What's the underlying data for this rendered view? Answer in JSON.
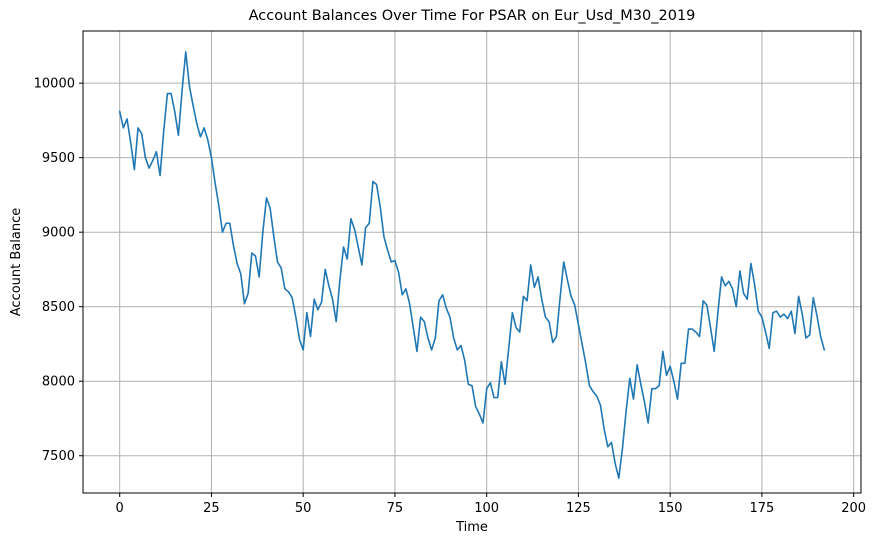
{
  "chart_data": {
    "type": "line",
    "title": "Account Balances Over Time For PSAR on Eur_Usd_M30_2019",
    "xlabel": "Time",
    "ylabel": "Account Balance",
    "xlim": [
      -10,
      202
    ],
    "ylim": [
      7250,
      10350
    ],
    "xticks": [
      0,
      25,
      50,
      75,
      100,
      125,
      150,
      175,
      200
    ],
    "yticks": [
      7500,
      8000,
      8500,
      9000,
      9500,
      10000
    ],
    "grid": true,
    "series": [
      {
        "color": "#1f77b4",
        "x": [
          0,
          1,
          2,
          3,
          4,
          5,
          6,
          7,
          8,
          9,
          10,
          11,
          12,
          13,
          14,
          15,
          16,
          17,
          18,
          19,
          20,
          21,
          22,
          23,
          24,
          25,
          26,
          27,
          28,
          29,
          30,
          31,
          32,
          33,
          34,
          35,
          36,
          37,
          38,
          39,
          40,
          41,
          42,
          43,
          44,
          45,
          46,
          47,
          48,
          49,
          50,
          51,
          52,
          53,
          54,
          55,
          56,
          57,
          58,
          59,
          60,
          61,
          62,
          63,
          64,
          65,
          66,
          67,
          68,
          69,
          70,
          71,
          72,
          73,
          74,
          75,
          76,
          77,
          78,
          79,
          80,
          81,
          82,
          83,
          84,
          85,
          86,
          87,
          88,
          89,
          90,
          91,
          92,
          93,
          94,
          95,
          96,
          97,
          98,
          99,
          100,
          101,
          102,
          103,
          104,
          105,
          106,
          107,
          108,
          109,
          110,
          111,
          112,
          113,
          114,
          115,
          116,
          117,
          118,
          119,
          120,
          121,
          122,
          123,
          124,
          125,
          126,
          127,
          128,
          129,
          130,
          131,
          132,
          133,
          134,
          135,
          136,
          137,
          138,
          139,
          140,
          141,
          142,
          143,
          144,
          145,
          146,
          147,
          148,
          149,
          150,
          151,
          152,
          153,
          154,
          155,
          156,
          157,
          158,
          159,
          160,
          161,
          162,
          163,
          164,
          165,
          166,
          167,
          168,
          169,
          170,
          171,
          172,
          173,
          174,
          175,
          176,
          177,
          178,
          179,
          180,
          181,
          182,
          183,
          184,
          185,
          186,
          187,
          188,
          189,
          190,
          191,
          192
        ],
        "y": [
          9810,
          9700,
          9760,
          9600,
          9420,
          9700,
          9660,
          9500,
          9430,
          9480,
          9540,
          9380,
          9680,
          9930,
          9930,
          9810,
          9650,
          9950,
          10210,
          9980,
          9850,
          9730,
          9640,
          9700,
          9620,
          9500,
          9330,
          9180,
          9000,
          9060,
          9060,
          8910,
          8790,
          8720,
          8520,
          8590,
          8860,
          8840,
          8700,
          9000,
          9230,
          9160,
          8970,
          8800,
          8760,
          8620,
          8600,
          8560,
          8430,
          8280,
          8210,
          8460,
          8300,
          8550,
          8480,
          8530,
          8750,
          8640,
          8550,
          8400,
          8680,
          8900,
          8820,
          9090,
          9020,
          8900,
          8780,
          9030,
          9060,
          9340,
          9320,
          9170,
          8970,
          8880,
          8800,
          8810,
          8730,
          8580,
          8620,
          8520,
          8360,
          8200,
          8430,
          8400,
          8290,
          8210,
          8290,
          8540,
          8580,
          8490,
          8430,
          8290,
          8210,
          8240,
          8140,
          7980,
          7970,
          7830,
          7780,
          7720,
          7950,
          7990,
          7890,
          7890,
          8130,
          7980,
          8220,
          8460,
          8360,
          8330,
          8570,
          8540,
          8780,
          8630,
          8700,
          8550,
          8430,
          8400,
          8260,
          8300,
          8560,
          8800,
          8680,
          8570,
          8510,
          8380,
          8250,
          8120,
          7970,
          7930,
          7900,
          7840,
          7680,
          7560,
          7590,
          7450,
          7350,
          7550,
          7800,
          8020,
          7880,
          8110,
          7980,
          7860,
          7720,
          7950,
          7950,
          7970,
          8200,
          8040,
          8100,
          8000,
          7880,
          8120,
          8120,
          8350,
          8350,
          8330,
          8300,
          8540,
          8510,
          8360,
          8200,
          8460,
          8700,
          8640,
          8670,
          8620,
          8500,
          8740,
          8590,
          8550,
          8790,
          8650,
          8470,
          8430,
          8330,
          8220,
          8460,
          8470,
          8430,
          8450,
          8420,
          8470,
          8320,
          8570,
          8450,
          8290,
          8310,
          8560,
          8440,
          8300,
          8210
        ]
      }
    ]
  }
}
